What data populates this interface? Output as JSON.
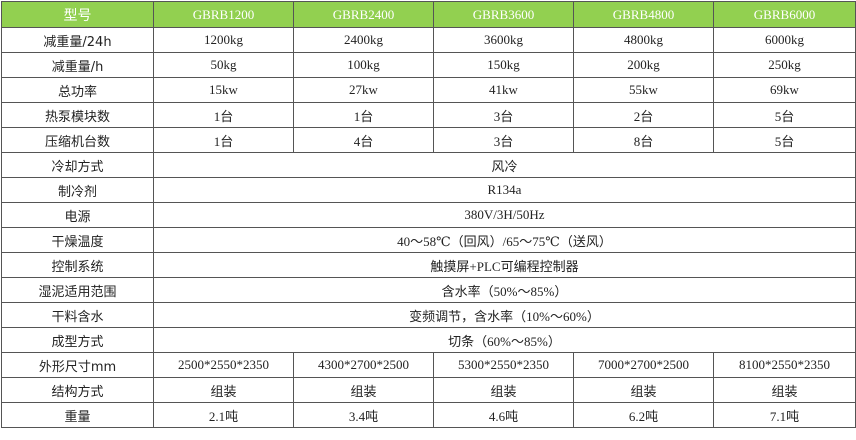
{
  "table": {
    "header": [
      "型号",
      "GBRB1200",
      "GBRB2400",
      "GBRB3600",
      "GBRB4800",
      "GBRB6000"
    ],
    "rows": [
      [
        "减重量/24h",
        "1200kg",
        "2400kg",
        "3600kg",
        "4800kg",
        "6000kg"
      ],
      [
        "减重量/h",
        "50kg",
        "100kg",
        "150kg",
        "200kg",
        "250kg"
      ],
      [
        "总功率",
        "15kw",
        "27kw",
        "41kw",
        "55kw",
        "69kw"
      ],
      [
        "热泵模块数",
        "1台",
        "1台",
        "3台",
        "2台",
        "5台"
      ],
      [
        "压缩机台数",
        "1台",
        "4台",
        "3台",
        "8台",
        "5台"
      ],
      [
        "冷却方式",
        "风冷"
      ],
      [
        "制冷剂",
        "R134a"
      ],
      [
        "电源",
        "380V/3H/50Hz"
      ],
      [
        "干燥温度",
        "40～58℃（回风）/65～75℃（送风）"
      ],
      [
        "控制系统",
        "触摸屏+PLC可编程控制器"
      ],
      [
        "湿泥适用范围",
        "含水率（50%～85%）"
      ],
      [
        "干料含水",
        "变频调节，含水率（10%～60%）"
      ],
      [
        "成型方式",
        "切条（60%～85%）"
      ],
      [
        "外形尺寸mm",
        "2500*2550*2350",
        "4300*2700*2500",
        "5300*2550*2350",
        "7000*2700*2500",
        "8100*2550*2350"
      ],
      [
        "结构方式",
        "组装",
        "组装",
        "组装",
        "组装",
        "组装"
      ],
      [
        "重量",
        "2.1吨",
        "3.4吨",
        "4.6吨",
        "6.2吨",
        "7.1吨"
      ]
    ]
  }
}
